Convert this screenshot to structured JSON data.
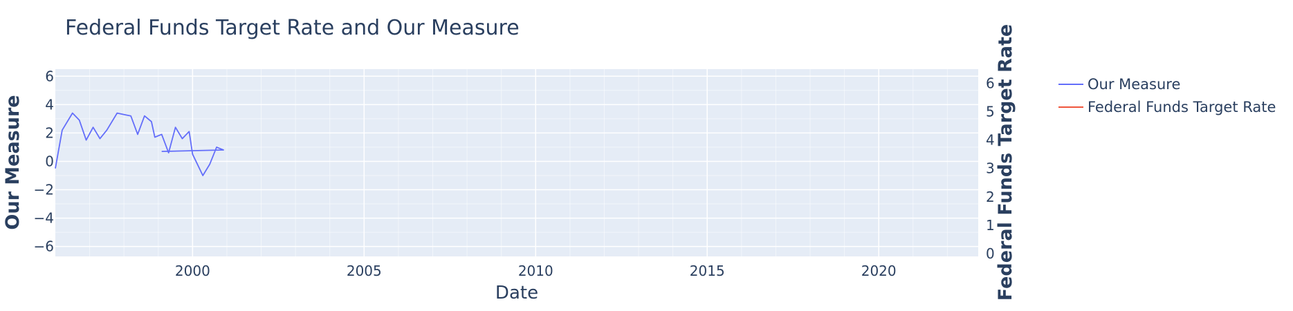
{
  "chart_data": {
    "type": "line",
    "title": "Federal Funds Target Rate and Our Measure",
    "xlabel": "Date",
    "ylabel_left": "Our Measure",
    "ylabel_right": "Federal Funds Target Rate",
    "x_ticks": [
      "2000",
      "2005",
      "2010",
      "2015",
      "2020"
    ],
    "y_left_ticks": [
      "6",
      "4",
      "2",
      "0",
      "−2",
      "−4",
      "−6"
    ],
    "y_right_ticks": [
      "6",
      "5",
      "4",
      "3",
      "2",
      "1",
      "0"
    ],
    "xlim": [
      1996.0,
      2022.9
    ],
    "ylim_left": [
      -6.7,
      6.5
    ],
    "ylim_right": [
      -0.1,
      6.5
    ],
    "grid": true,
    "legend_position": "top-right",
    "series": [
      {
        "name": "Our Measure",
        "axis": "left",
        "color": "#636efa",
        "points": [
          [
            1996.0,
            -0.5
          ],
          [
            1996.2,
            2.2
          ],
          [
            1996.5,
            3.4
          ],
          [
            1996.7,
            2.9
          ],
          [
            1996.9,
            1.5
          ],
          [
            1997.1,
            2.4
          ],
          [
            1997.3,
            1.6
          ],
          [
            1997.5,
            2.2
          ],
          [
            1997.8,
            3.4
          ],
          [
            1998.0,
            3.3
          ],
          [
            1998.2,
            3.2
          ],
          [
            1998.4,
            1.9
          ],
          [
            1998.6,
            3.2
          ],
          [
            1998.8,
            2.8
          ],
          [
            1998.9,
            1.7
          ],
          [
            1999.1,
            1.9
          ],
          [
            1999.3,
            0.6
          ],
          [
            1999.5,
            2.4
          ],
          [
            1999.7,
            1.6
          ],
          [
            1999.9,
            2.1
          ],
          [
            2000.0,
            0.5
          ],
          [
            2000.3,
            -1.0
          ],
          [
            2000.5,
            -0.2
          ],
          [
            2000.7,
            1.0
          ],
          [
            2000.9,
            0.8
          ],
          [
            1999.1,
            0.7
          ]
        ]
      },
      {
        "name": "Federal Funds Target Rate",
        "axis": "right",
        "color": "#ef553b",
        "points": []
      }
    ]
  }
}
